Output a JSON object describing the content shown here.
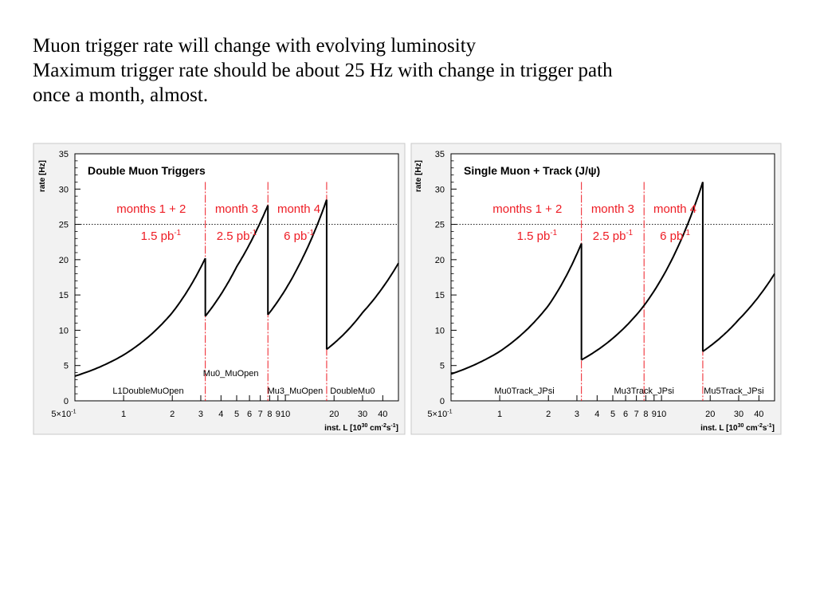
{
  "slide": {
    "lines": [
      "Muon trigger rate will change with evolving luminosity",
      "Maximum trigger rate should be about 25 Hz with change in trigger path",
      "once a month, almost."
    ]
  },
  "colors": {
    "curve": "#000000",
    "annotation": "#ee1c24",
    "reference_line": "#000000",
    "frame": "#000000"
  },
  "chart_data": [
    {
      "type": "line",
      "title": "Double Muon Triggers",
      "ylabel": "rate [Hz]",
      "xlabel": "inst. L [10^30 cm^-2 s^-1]",
      "xlabel_parts": {
        "prefix": "inst. L [10",
        "exp1": "30",
        "mid": " cm",
        "exp2": "-2",
        "mid2": "s",
        "exp3": "-1",
        "suffix": "]"
      },
      "xscale": "log",
      "xlim": [
        0.5,
        50
      ],
      "ylim": [
        0,
        35
      ],
      "y_ticks": [
        0,
        5,
        10,
        15,
        20,
        25,
        30,
        35
      ],
      "x_ticks": [
        {
          "value": 0.5,
          "label": "5×10",
          "sup": "-1"
        },
        {
          "value": 1,
          "label": "1"
        },
        {
          "value": 2,
          "label": "2"
        },
        {
          "value": 3,
          "label": "3"
        },
        {
          "value": 4,
          "label": "4"
        },
        {
          "value": 5,
          "label": "5"
        },
        {
          "value": 6,
          "label": "6"
        },
        {
          "value": 7,
          "label": "7"
        },
        {
          "value": 8,
          "label": "8"
        },
        {
          "value": 9,
          "label": "9"
        },
        {
          "value": 10,
          "label": "10"
        },
        {
          "value": 20,
          "label": "20"
        },
        {
          "value": 30,
          "label": "30"
        },
        {
          "value": 40,
          "label": "40"
        }
      ],
      "reference_y": 25,
      "segments": [
        {
          "name": "L1DoubleMuOpen",
          "x": [
            0.5,
            1.0,
            2.0,
            3.2
          ],
          "y": [
            3.5,
            6.5,
            12.5,
            20.2
          ]
        },
        {
          "name": "Mu0_MuOpen",
          "x": [
            3.2,
            5.0,
            7.8
          ],
          "y": [
            12.0,
            19.0,
            27.7
          ]
        },
        {
          "name": "Mu3_MuOpen",
          "x": [
            7.8,
            12.0,
            18.0
          ],
          "y": [
            12.2,
            19.0,
            28.5
          ]
        },
        {
          "name": "DoubleMu0",
          "x": [
            18.0,
            30.0,
            50.0
          ],
          "y": [
            7.3,
            12.5,
            19.5
          ]
        }
      ],
      "transitions": [
        {
          "x": 3.2,
          "y_from": 20.2,
          "y_to": 12.0
        },
        {
          "x": 7.8,
          "y_from": 27.7,
          "y_to": 12.2
        },
        {
          "x": 18.0,
          "y_from": 28.5,
          "y_to": 7.3
        }
      ],
      "period_lines": [
        3.2,
        7.8,
        18.0
      ],
      "periods": [
        {
          "label": "months 1 + 2",
          "lumi": "1.5 pb",
          "sup": "-1"
        },
        {
          "label": "month 3",
          "lumi": "2.5 pb",
          "sup": "-1"
        },
        {
          "label": "month 4",
          "lumi": "6 pb",
          "sup": "-1"
        }
      ],
      "trigger_labels": [
        {
          "text": "L1DoubleMuOpen",
          "x": 1.42,
          "y": 1.0
        },
        {
          "text": "Mu0_MuOpen",
          "x": 4.6,
          "y": 3.5
        },
        {
          "text": "Mu3_MuOpen",
          "x": 11.5,
          "y": 1.0
        },
        {
          "text": "DoubleMu0",
          "x": 26.0,
          "y": 1.0
        }
      ]
    },
    {
      "type": "line",
      "title": "Single Muon + Track (J/ψ)",
      "ylabel": "rate [Hz]",
      "xlabel": "inst. L [10^30 cm^-2 s^-1]",
      "xlabel_parts": {
        "prefix": "inst. L [10",
        "exp1": "30",
        "mid": " cm",
        "exp2": "-2",
        "mid2": "s",
        "exp3": "-1",
        "suffix": "]"
      },
      "xscale": "log",
      "xlim": [
        0.5,
        50
      ],
      "ylim": [
        0,
        35
      ],
      "y_ticks": [
        0,
        5,
        10,
        15,
        20,
        25,
        30,
        35
      ],
      "x_ticks": [
        {
          "value": 0.5,
          "label": "5×10",
          "sup": "-1"
        },
        {
          "value": 1,
          "label": "1"
        },
        {
          "value": 2,
          "label": "2"
        },
        {
          "value": 3,
          "label": "3"
        },
        {
          "value": 4,
          "label": "4"
        },
        {
          "value": 5,
          "label": "5"
        },
        {
          "value": 6,
          "label": "6"
        },
        {
          "value": 7,
          "label": "7"
        },
        {
          "value": 8,
          "label": "8"
        },
        {
          "value": 9,
          "label": "9"
        },
        {
          "value": 10,
          "label": "10"
        },
        {
          "value": 20,
          "label": "20"
        },
        {
          "value": 30,
          "label": "30"
        },
        {
          "value": 40,
          "label": "40"
        }
      ],
      "reference_y": 25,
      "segments": [
        {
          "name": "Mu0Track_JPsi",
          "x": [
            0.5,
            1.0,
            2.0,
            3.2
          ],
          "y": [
            3.8,
            7.0,
            13.5,
            22.3
          ]
        },
        {
          "name": "Mu3Track_JPsi",
          "x": [
            3.2,
            7.8,
            18.0
          ],
          "y": [
            5.8,
            13.5,
            31.0
          ]
        },
        {
          "name": "Mu5Track_JPsi",
          "x": [
            18.0,
            30.0,
            50.0
          ],
          "y": [
            7.0,
            11.5,
            18.0
          ]
        }
      ],
      "transitions": [
        {
          "x": 3.2,
          "y_from": 22.3,
          "y_to": 5.8
        },
        {
          "x": 18.0,
          "y_from": 31.0,
          "y_to": 7.0
        }
      ],
      "period_lines": [
        3.2,
        7.8,
        18.0
      ],
      "periods": [
        {
          "label": "months 1 + 2",
          "lumi": "1.5 pb",
          "sup": "-1"
        },
        {
          "label": "month 3",
          "lumi": "2.5 pb",
          "sup": "-1"
        },
        {
          "label": "month 4",
          "lumi": "6 pb",
          "sup": "-1"
        }
      ],
      "trigger_labels": [
        {
          "text": "Mu0Track_JPsi",
          "x": 1.42,
          "y": 1.0
        },
        {
          "text": "Mu3Track_JPsi",
          "x": 7.8,
          "y": 1.0
        },
        {
          "text": "Mu5Track_JPsi",
          "x": 28.0,
          "y": 1.0
        }
      ]
    }
  ]
}
